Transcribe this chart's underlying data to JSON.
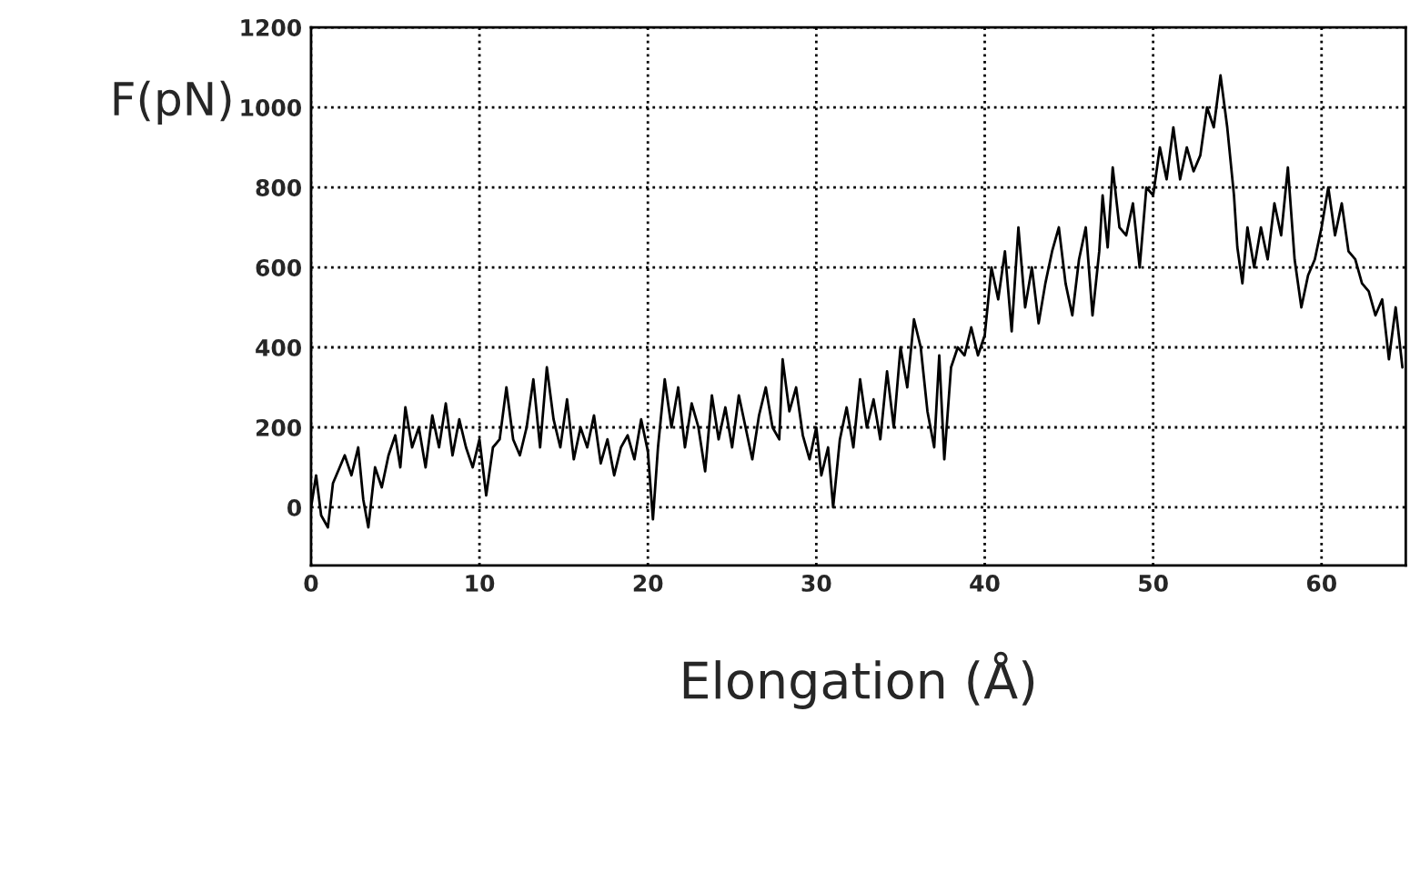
{
  "chart_data": {
    "type": "line",
    "xlabel": "Elongation (Å)",
    "ylabel": "F(pN)",
    "xlim": [
      0,
      65
    ],
    "ylim": [
      -145,
      1200
    ],
    "xticks": [
      0,
      10,
      20,
      30,
      40,
      50,
      60
    ],
    "yticks": [
      0,
      200,
      400,
      600,
      800,
      1000,
      1200
    ],
    "grid": true,
    "line_style": "solid",
    "marker": "none",
    "series": [
      {
        "color": "#000000",
        "x": [
          0,
          0.3,
          0.6,
          1,
          1.3,
          1.7,
          2,
          2.4,
          2.8,
          3.1,
          3.4,
          3.8,
          4.2,
          4.6,
          5,
          5.3,
          5.6,
          6,
          6.4,
          6.8,
          7.2,
          7.6,
          8,
          8.4,
          8.8,
          9.2,
          9.6,
          10,
          10.4,
          10.8,
          11.2,
          11.6,
          12,
          12.4,
          12.8,
          13.2,
          13.6,
          14,
          14.4,
          14.8,
          15.2,
          15.6,
          16,
          16.4,
          16.8,
          17.2,
          17.6,
          18,
          18.4,
          18.8,
          19.2,
          19.6,
          20,
          20.3,
          20.6,
          21,
          21.4,
          21.8,
          22.2,
          22.6,
          23,
          23.4,
          23.8,
          24.2,
          24.6,
          25,
          25.4,
          25.8,
          26.2,
          26.6,
          27,
          27.4,
          27.8,
          28,
          28.4,
          28.8,
          29.2,
          29.6,
          30,
          30.3,
          30.7,
          31,
          31.4,
          31.8,
          32.2,
          32.6,
          33,
          33.4,
          33.8,
          34.2,
          34.6,
          35,
          35.4,
          35.8,
          36.2,
          36.6,
          37,
          37.3,
          37.6,
          38,
          38.4,
          38.8,
          39.2,
          39.6,
          40,
          40.4,
          40.8,
          41.2,
          41.6,
          42,
          42.4,
          42.8,
          43.2,
          43.6,
          44,
          44.4,
          44.8,
          45.2,
          45.6,
          46,
          46.4,
          46.8,
          47,
          47.3,
          47.6,
          48,
          48.4,
          48.8,
          49.2,
          49.6,
          50,
          50.4,
          50.8,
          51.2,
          51.6,
          52,
          52.4,
          52.8,
          53.2,
          53.6,
          54,
          54.4,
          54.8,
          55,
          55.3,
          55.6,
          56,
          56.4,
          56.8,
          57.2,
          57.6,
          58,
          58.4,
          58.8,
          59.2,
          59.6,
          60,
          60.4,
          60.8,
          61.2,
          61.6,
          62,
          62.4,
          62.8,
          63.2,
          63.6,
          64,
          64.4,
          64.8
        ],
        "values": [
          0,
          80,
          -20,
          -50,
          60,
          100,
          130,
          80,
          150,
          20,
          -50,
          100,
          50,
          130,
          180,
          100,
          250,
          150,
          200,
          100,
          230,
          150,
          260,
          130,
          220,
          150,
          100,
          170,
          30,
          150,
          170,
          300,
          170,
          130,
          200,
          320,
          150,
          350,
          220,
          150,
          270,
          120,
          200,
          150,
          230,
          110,
          170,
          80,
          150,
          180,
          120,
          220,
          140,
          -30,
          150,
          320,
          200,
          300,
          150,
          260,
          200,
          90,
          280,
          170,
          250,
          150,
          280,
          200,
          120,
          230,
          300,
          200,
          170,
          370,
          240,
          300,
          180,
          120,
          200,
          80,
          150,
          0,
          170,
          250,
          150,
          320,
          200,
          270,
          170,
          340,
          200,
          400,
          300,
          470,
          400,
          240,
          150,
          380,
          120,
          350,
          400,
          380,
          450,
          380,
          430,
          600,
          520,
          640,
          440,
          700,
          500,
          600,
          460,
          560,
          640,
          700,
          560,
          480,
          620,
          700,
          480,
          640,
          780,
          650,
          850,
          700,
          680,
          760,
          600,
          800,
          780,
          900,
          820,
          950,
          820,
          900,
          840,
          880,
          1000,
          950,
          1080,
          950,
          780,
          650,
          560,
          700,
          600,
          700,
          620,
          760,
          680,
          850,
          620,
          500,
          580,
          620,
          700,
          800,
          680,
          760,
          640,
          620,
          560,
          540,
          480,
          520,
          370,
          500,
          350
        ]
      }
    ]
  }
}
